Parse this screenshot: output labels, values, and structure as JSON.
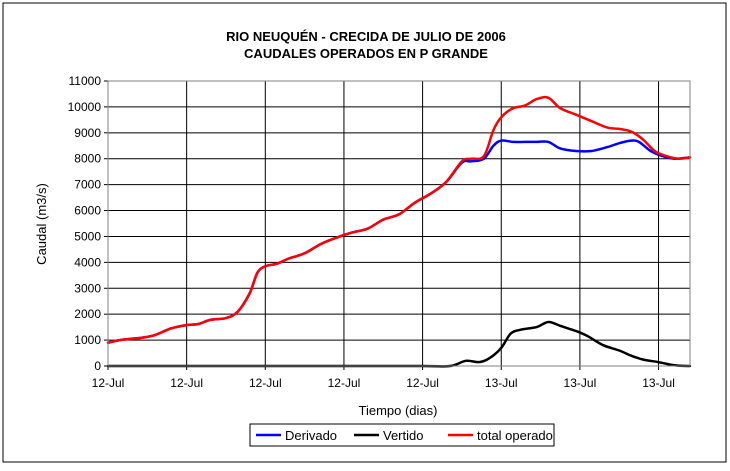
{
  "chart_data": {
    "type": "line",
    "title": "RIO NEUQUÉN - CRECIDA DE JULIO DE 2006",
    "subtitle": "CAUDALES OPERADOS EN P GRANDE",
    "xlabel": "Tiempo (dias)",
    "ylabel": "Caudal (m3/s)",
    "ylim": [
      0,
      11000
    ],
    "yticks": [
      0,
      1000,
      2000,
      3000,
      4000,
      5000,
      6000,
      7000,
      8000,
      9000,
      10000,
      11000
    ],
    "xlim": [
      0,
      7.4
    ],
    "x_tick_positions": [
      0,
      1,
      2,
      3,
      4,
      5,
      6,
      7
    ],
    "x_tick_labels": [
      "12-Jul",
      "12-Jul",
      "12-Jul",
      "12-Jul",
      "12-Jul",
      "13-Jul",
      "13-Jul",
      "13-Jul"
    ],
    "grid": true,
    "legend_position": "bottom",
    "series": [
      {
        "name": "Derivado",
        "color": "#0000ff",
        "x": [
          0,
          0.15,
          0.3,
          0.45,
          0.6,
          0.8,
          1.0,
          1.15,
          1.3,
          1.5,
          1.65,
          1.8,
          1.9,
          2.0,
          2.15,
          2.3,
          2.5,
          2.7,
          2.9,
          3.1,
          3.3,
          3.5,
          3.7,
          3.9,
          4.1,
          4.3,
          4.5,
          4.62,
          4.78,
          4.9,
          5.0,
          5.15,
          5.3,
          5.45,
          5.6,
          5.75,
          5.95,
          6.15,
          6.35,
          6.5,
          6.65,
          6.75,
          6.9,
          7.05,
          7.2,
          7.4
        ],
        "values": [
          900,
          1000,
          1050,
          1100,
          1200,
          1450,
          1580,
          1620,
          1780,
          1850,
          2100,
          2800,
          3600,
          3850,
          3950,
          4150,
          4350,
          4700,
          4950,
          5150,
          5300,
          5650,
          5850,
          6300,
          6650,
          7100,
          7850,
          7900,
          8000,
          8500,
          8700,
          8650,
          8650,
          8650,
          8650,
          8400,
          8300,
          8300,
          8450,
          8600,
          8700,
          8650,
          8300,
          8100,
          8000,
          8050
        ]
      },
      {
        "name": "Vertido",
        "color": "#000000",
        "x": [
          0,
          1,
          2,
          3,
          4,
          4.35,
          4.55,
          4.72,
          4.85,
          5.0,
          5.12,
          5.25,
          5.45,
          5.6,
          5.75,
          5.95,
          6.1,
          6.3,
          6.5,
          6.65,
          6.8,
          7.0,
          7.2,
          7.4
        ],
        "values": [
          0,
          0,
          0,
          0,
          0,
          0,
          200,
          150,
          300,
          700,
          1250,
          1400,
          1500,
          1700,
          1550,
          1350,
          1150,
          800,
          600,
          400,
          250,
          150,
          30,
          0
        ]
      },
      {
        "name": "total operado",
        "color": "#ff0000",
        "x": [
          0,
          0.15,
          0.3,
          0.45,
          0.6,
          0.8,
          1.0,
          1.15,
          1.3,
          1.5,
          1.65,
          1.8,
          1.9,
          2.0,
          2.15,
          2.3,
          2.5,
          2.7,
          2.9,
          3.1,
          3.3,
          3.5,
          3.7,
          3.9,
          4.1,
          4.3,
          4.5,
          4.62,
          4.78,
          4.9,
          5.0,
          5.15,
          5.3,
          5.45,
          5.6,
          5.75,
          5.95,
          6.15,
          6.35,
          6.5,
          6.65,
          6.8,
          6.95,
          7.1,
          7.25,
          7.4
        ],
        "values": [
          900,
          1000,
          1050,
          1100,
          1200,
          1450,
          1580,
          1620,
          1780,
          1850,
          2100,
          2800,
          3600,
          3850,
          3950,
          4150,
          4350,
          4700,
          4950,
          5150,
          5300,
          5650,
          5850,
          6300,
          6650,
          7100,
          7900,
          8000,
          8100,
          9100,
          9600,
          9950,
          10050,
          10300,
          10350,
          9950,
          9700,
          9450,
          9200,
          9150,
          9050,
          8750,
          8300,
          8100,
          8000,
          8050
        ]
      }
    ]
  }
}
